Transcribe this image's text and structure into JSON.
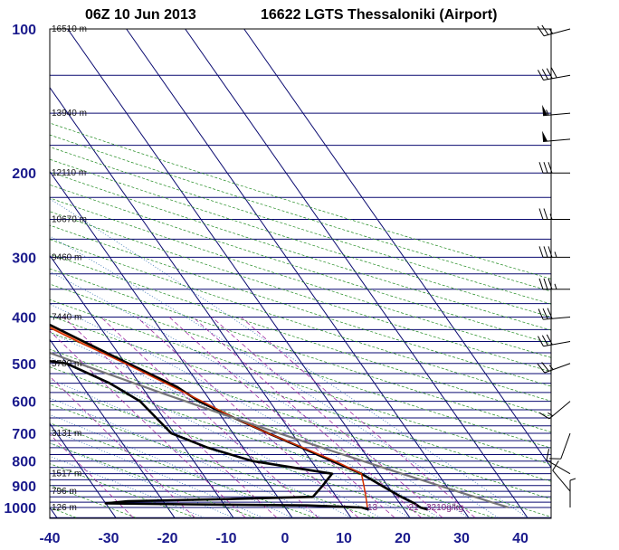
{
  "header": {
    "time_label": "06Z 10 Jun 2013",
    "station_label": "16622 LGTS Thessaloniki (Airport)"
  },
  "chart_data": {
    "type": "line",
    "diagram": "skew-T log-P",
    "pressure_ticks": [
      "100",
      "200",
      "300",
      "400",
      "500",
      "600",
      "700",
      "800",
      "900",
      "1000"
    ],
    "temperature_ticks": [
      "-40",
      "-30",
      "-20",
      "-10",
      "0",
      "10",
      "20",
      "30",
      "40"
    ],
    "height_labels": [
      {
        "p": 100,
        "text": "16510 m"
      },
      {
        "p": 150,
        "text": "13940 m"
      },
      {
        "p": 200,
        "text": "12110 m"
      },
      {
        "p": 250,
        "text": "10670 m"
      },
      {
        "p": 300,
        "text": "9460 m"
      },
      {
        "p": 400,
        "text": "7440 m"
      },
      {
        "p": 500,
        "text": "5780 m"
      },
      {
        "p": 700,
        "text": "3131 m"
      },
      {
        "p": 850,
        "text": "1517 m"
      },
      {
        "p": 925,
        "text": "796 m"
      },
      {
        "p": 1000,
        "text": "126 m"
      }
    ],
    "mixing_ratio_labels": [
      {
        "t": 14,
        "text": "13"
      },
      {
        "t": 21,
        "text": "21"
      },
      {
        "t": 24,
        "text": "3210g/kg"
      }
    ],
    "xlim": [
      -40,
      45
    ],
    "ylim": [
      1000,
      100
    ],
    "series": [
      {
        "role": "temperature",
        "color": "#000000",
        "points": [
          [
            1010,
            24
          ],
          [
            1000,
            23
          ],
          [
            980,
            22.5
          ],
          [
            950,
            21
          ],
          [
            900,
            19
          ],
          [
            850,
            17
          ],
          [
            800,
            13.5
          ],
          [
            750,
            10
          ],
          [
            700,
            6
          ],
          [
            650,
            2
          ],
          [
            600,
            -2
          ],
          [
            560,
            -4
          ],
          [
            500,
            -9.5
          ],
          [
            450,
            -14.5
          ],
          [
            400,
            -20
          ],
          [
            350,
            -27
          ],
          [
            300,
            -34.5
          ],
          [
            250,
            -43
          ],
          [
            230,
            -46
          ],
          [
            200,
            -50
          ],
          [
            175,
            -53
          ],
          [
            150,
            -56
          ],
          [
            130,
            -62
          ],
          [
            110,
            -65
          ],
          [
            100,
            -68
          ]
        ]
      },
      {
        "role": "dewpoint",
        "color": "#000000",
        "points": [
          [
            1010,
            14
          ],
          [
            1000,
            13
          ],
          [
            990,
            4
          ],
          [
            985,
            -16
          ],
          [
            980,
            -30
          ],
          [
            970,
            -26
          ],
          [
            960,
            -8
          ],
          [
            950,
            6
          ],
          [
            900,
            9
          ],
          [
            850,
            12
          ],
          [
            800,
            0
          ],
          [
            750,
            -6
          ],
          [
            700,
            -10.5
          ],
          [
            600,
            -12
          ],
          [
            550,
            -15
          ],
          [
            500,
            -20
          ],
          [
            480,
            -30
          ],
          [
            470,
            -22
          ],
          [
            450,
            -21
          ],
          [
            400,
            -28
          ],
          [
            350,
            -39
          ],
          [
            320,
            -43
          ]
        ]
      },
      {
        "role": "parcel",
        "color": "#d43000",
        "points": [
          [
            1000,
            14
          ],
          [
            950,
            15
          ],
          [
            900,
            16
          ],
          [
            850,
            17
          ],
          [
            800,
            14
          ],
          [
            750,
            10.2
          ],
          [
            700,
            6
          ],
          [
            650,
            2
          ],
          [
            600,
            -1.5
          ],
          [
            550,
            -5.5
          ],
          [
            500,
            -10
          ],
          [
            450,
            -15.5
          ],
          [
            400,
            -21
          ],
          [
            350,
            -27.5
          ],
          [
            300,
            -35
          ],
          [
            250,
            -44
          ],
          [
            230,
            -47.5
          ]
        ]
      }
    ],
    "cape_shading_color": "#f47a45",
    "wind_barbs": [
      {
        "p": 100,
        "dir": 255,
        "spd": 25
      },
      {
        "p": 125,
        "dir": 260,
        "spd": 40
      },
      {
        "p": 150,
        "dir": 265,
        "spd": 55
      },
      {
        "p": 170,
        "dir": 265,
        "spd": 50
      },
      {
        "p": 200,
        "dir": 270,
        "spd": 30
      },
      {
        "p": 250,
        "dir": 270,
        "spd": 25
      },
      {
        "p": 300,
        "dir": 270,
        "spd": 35
      },
      {
        "p": 350,
        "dir": 270,
        "spd": 35
      },
      {
        "p": 400,
        "dir": 265,
        "spd": 30
      },
      {
        "p": 450,
        "dir": 260,
        "spd": 30
      },
      {
        "p": 500,
        "dir": 250,
        "spd": 25
      },
      {
        "p": 600,
        "dir": 230,
        "spd": 15
      },
      {
        "p": 700,
        "dir": 200,
        "spd": 10
      },
      {
        "p": 850,
        "dir": 300,
        "spd": 10
      },
      {
        "p": 925,
        "dir": 320,
        "spd": 10
      },
      {
        "p": 1000,
        "dir": 0,
        "spd": 5
      }
    ]
  }
}
